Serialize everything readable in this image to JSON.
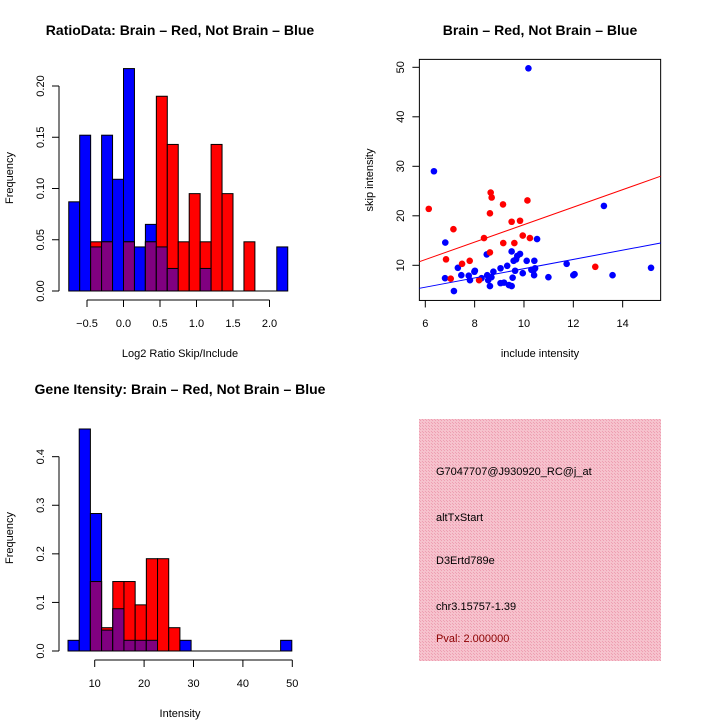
{
  "chart_data": [
    {
      "type": "bar",
      "subtype": "histogram",
      "title": "RatioData: Brain – Red, Not Brain – Blue",
      "xlabel": "Log2 Ratio Skip/Include",
      "ylabel": "Frequency",
      "bins": {
        "start": -0.75,
        "width": 0.15,
        "count": 20
      },
      "series": [
        {
          "name": "Not Brain",
          "color": "#0000ff",
          "values": [
            0.087,
            0.152,
            0.043,
            0.152,
            0.109,
            0.217,
            0.043,
            0.065,
            0.043,
            0.022,
            0,
            0,
            0.022,
            0,
            0,
            0,
            0,
            0,
            0,
            0.043
          ]
        },
        {
          "name": "Brain",
          "color": "#ff0000",
          "values": [
            0,
            0,
            0.048,
            0.048,
            0,
            0.048,
            0,
            0.048,
            0.19,
            0.143,
            0.048,
            0.095,
            0.048,
            0.143,
            0.095,
            0,
            0.048,
            0,
            0,
            0
          ]
        }
      ],
      "overlap_color": "#800080",
      "xticks": [
        "-0.5",
        "0.0",
        "0.5",
        "1.0",
        "1.5",
        "2.0"
      ],
      "yticks": [
        "0.00",
        "0.05",
        "0.10",
        "0.15",
        "0.20"
      ],
      "ylim": [
        0,
        0.22
      ]
    },
    {
      "type": "scatter",
      "title": "Brain – Red, Not Brain – Blue",
      "xlabel": "include intensity",
      "ylabel": "skip intensity",
      "xlim": [
        5.76,
        15.54
      ],
      "ylim": [
        2.9,
        51.6
      ],
      "xticks": [
        "6",
        "8",
        "10",
        "12",
        "14"
      ],
      "yticks": [
        "10",
        "20",
        "30",
        "40",
        "50"
      ],
      "series": [
        {
          "name": "Brain",
          "color": "#ff0000",
          "points": [
            [
              6.14,
              21.4
            ],
            [
              7.14,
              17.3
            ],
            [
              6.84,
              11.2
            ],
            [
              7.03,
              7.3
            ],
            [
              7.49,
              10.3
            ],
            [
              7.8,
              10.9
            ],
            [
              8.18,
              7.0
            ],
            [
              8.38,
              15.5
            ],
            [
              8.65,
              24.7
            ],
            [
              8.69,
              23.7
            ],
            [
              8.62,
              20.5
            ],
            [
              8.62,
              12.6
            ],
            [
              9.15,
              22.3
            ],
            [
              9.16,
              14.5
            ],
            [
              9.5,
              18.8
            ],
            [
              9.61,
              14.5
            ],
            [
              9.84,
              19.0
            ],
            [
              9.95,
              16.0
            ],
            [
              10.14,
              23.1
            ],
            [
              10.24,
              15.5
            ],
            [
              12.89,
              9.7
            ]
          ],
          "fit_line": [
            [
              5.76,
              10.73
            ],
            [
              15.54,
              28.0
            ]
          ]
        },
        {
          "name": "Not Brain",
          "color": "#0000ff",
          "points": [
            [
              10.18,
              49.8
            ],
            [
              6.35,
              29.0
            ],
            [
              6.81,
              14.6
            ],
            [
              6.8,
              7.4
            ],
            [
              7.16,
              4.8
            ],
            [
              7.32,
              9.5
            ],
            [
              7.46,
              8.0
            ],
            [
              7.76,
              7.9
            ],
            [
              7.81,
              7.0
            ],
            [
              7.99,
              8.7
            ],
            [
              8.01,
              8.9
            ],
            [
              8.28,
              7.4
            ],
            [
              8.49,
              12.2
            ],
            [
              8.51,
              8.0
            ],
            [
              8.55,
              7.0
            ],
            [
              8.62,
              5.8
            ],
            [
              8.68,
              7.6
            ],
            [
              8.76,
              8.7
            ],
            [
              9.05,
              9.4
            ],
            [
              9.05,
              6.4
            ],
            [
              9.19,
              6.5
            ],
            [
              9.32,
              9.9
            ],
            [
              9.39,
              6.0
            ],
            [
              9.5,
              5.8
            ],
            [
              9.5,
              12.8
            ],
            [
              9.54,
              7.5
            ],
            [
              9.58,
              10.9
            ],
            [
              9.64,
              8.9
            ],
            [
              9.68,
              11.2
            ],
            [
              9.73,
              11.9
            ],
            [
              9.84,
              12.3
            ],
            [
              9.95,
              8.4
            ],
            [
              10.11,
              10.9
            ],
            [
              10.3,
              9.1
            ],
            [
              10.38,
              8.9
            ],
            [
              10.41,
              8.0
            ],
            [
              10.42,
              10.9
            ],
            [
              10.45,
              9.4
            ],
            [
              10.53,
              15.3
            ],
            [
              10.99,
              7.6
            ],
            [
              11.73,
              10.3
            ],
            [
              12.0,
              8.0
            ],
            [
              12.05,
              8.2
            ],
            [
              13.24,
              22.0
            ],
            [
              13.59,
              8.0
            ],
            [
              15.15,
              9.5
            ]
          ],
          "fit_line": [
            [
              5.76,
              5.35
            ],
            [
              15.54,
              14.5
            ]
          ]
        }
      ]
    },
    {
      "type": "bar",
      "subtype": "histogram",
      "title": "Gene Itensity: Brain – Red, Not Brain – Blue",
      "xlabel": "Intensity",
      "ylabel": "Frequency",
      "bins": {
        "start": 4.6,
        "width": 2.265,
        "count": 20
      },
      "series": [
        {
          "name": "Not Brain",
          "color": "#0000ff",
          "values": [
            0.022,
            0.457,
            0.283,
            0.043,
            0.087,
            0.022,
            0.022,
            0.022,
            0,
            0,
            0.022,
            0,
            0,
            0,
            0,
            0,
            0,
            0,
            0,
            0.022
          ]
        },
        {
          "name": "Brain",
          "color": "#ff0000",
          "values": [
            0,
            0,
            0.143,
            0.048,
            0.143,
            0.143,
            0.095,
            0.19,
            0.19,
            0.048,
            0,
            0,
            0,
            0,
            0,
            0,
            0,
            0,
            0,
            0
          ]
        }
      ],
      "overlap_color": "#800080",
      "xticks": [
        "10",
        "20",
        "30",
        "40",
        "50"
      ],
      "yticks": [
        "0.0",
        "0.1",
        "0.2",
        "0.3",
        "0.4"
      ],
      "ylim": [
        0,
        0.46
      ]
    }
  ],
  "info_panel": {
    "background": "#f4bcc8",
    "lines": [
      "G7047707@J930920_RC@j_at",
      "altTxStart",
      "D3Ertd789e",
      "chr3.15757-1.39"
    ],
    "pval": "Pval: 2.000000",
    "pval_color": "#8b0000"
  }
}
